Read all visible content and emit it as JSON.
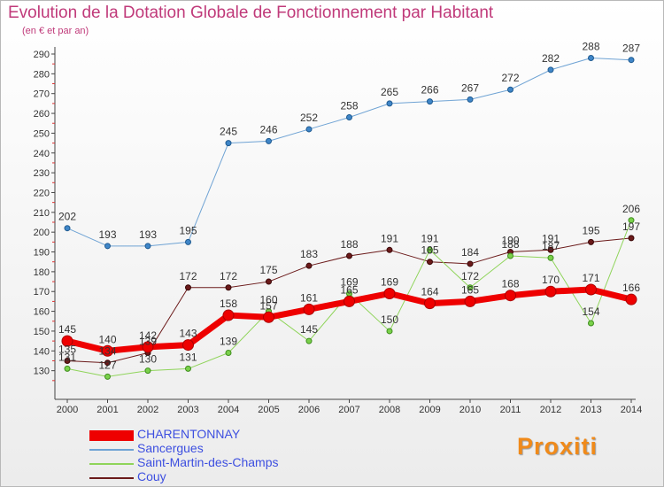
{
  "chart_data": {
    "type": "line",
    "title": "Evolution de la Dotation Globale de Fonctionnement par Habitant",
    "subtitle": "(en € et par an)",
    "xlabel": "",
    "ylabel": "",
    "ylim": [
      120,
      290
    ],
    "ytick_step": 10,
    "grid": false,
    "categories": [
      "2000",
      "2001",
      "2002",
      "2003",
      "2004",
      "2005",
      "2006",
      "2007",
      "2008",
      "2009",
      "2010",
      "2011",
      "2012",
      "2013",
      "2014"
    ],
    "series": [
      {
        "name": "CHARENTONNAY",
        "color": "#ee0000",
        "values": [
          145,
          140,
          142,
          143,
          158,
          157,
          161,
          165,
          169,
          164,
          165,
          168,
          170,
          171,
          166
        ]
      },
      {
        "name": "Sancergues",
        "color": "#6fa3d4",
        "values": [
          202,
          193,
          193,
          195,
          245,
          246,
          252,
          258,
          265,
          266,
          267,
          272,
          282,
          288,
          287
        ]
      },
      {
        "name": "Saint-Martin-des-Champs",
        "color": "#8fd45a",
        "values": [
          131,
          127,
          130,
          131,
          139,
          160,
          145,
          169,
          150,
          191,
          172,
          188,
          187,
          154,
          206
        ]
      },
      {
        "name": "Couy",
        "color": "#6b1a1a",
        "values": [
          135,
          134,
          139,
          172,
          172,
          175,
          183,
          188,
          191,
          185,
          184,
          190,
          191,
          195,
          197
        ]
      }
    ],
    "legend_position": "bottom-left"
  },
  "logo": {
    "text": "Proxiti"
  }
}
